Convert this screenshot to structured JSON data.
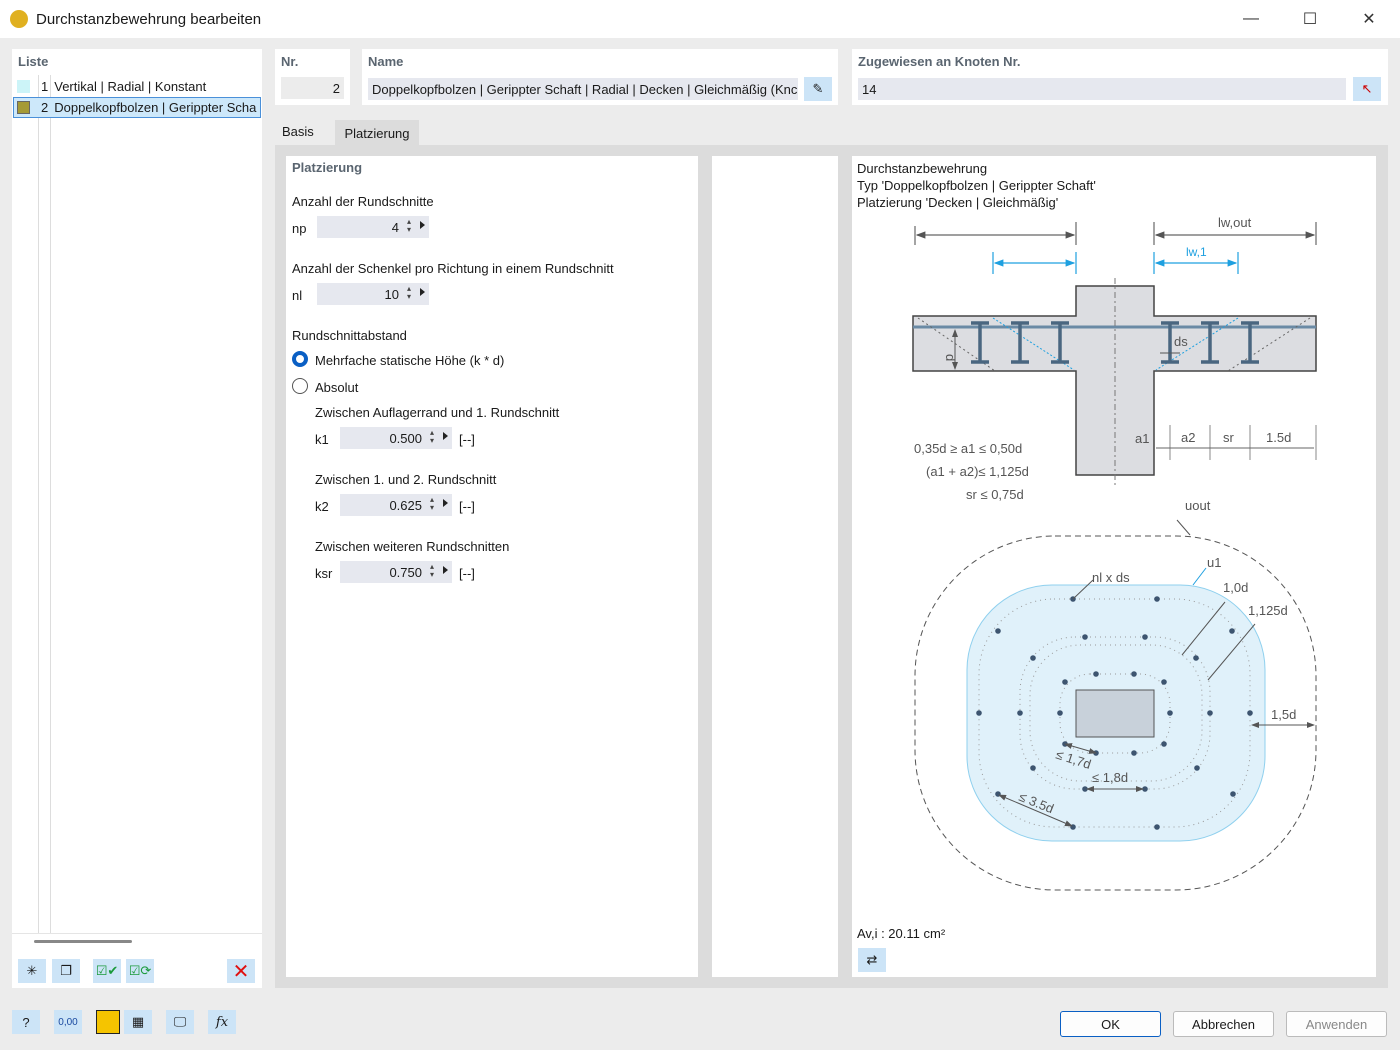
{
  "window": {
    "title": "Durchstanzbewehrung bearbeiten",
    "minimize": "—",
    "maximize": "☐",
    "close": "✕"
  },
  "list": {
    "header": "Liste",
    "items": [
      {
        "no": "1",
        "label": "Vertikal | Radial | Konstant",
        "color": "#ccf4f8"
      },
      {
        "no": "2",
        "label": "Doppelkopfbolzen | Gerippter Scha",
        "color": "#a59a36"
      }
    ]
  },
  "nr": {
    "header": "Nr.",
    "value": "2"
  },
  "name": {
    "header": "Name",
    "value": "Doppelkopfbolzen | Gerippter Schaft | Radial | Decken | Gleichmäßig (Knc"
  },
  "assigned": {
    "header": "Zugewiesen an Knoten Nr.",
    "value": "14"
  },
  "tabs": [
    {
      "label": "Basis"
    },
    {
      "label": "Platzierung",
      "active": true
    }
  ],
  "placement": {
    "title": "Platzierung",
    "np_label": "Anzahl der Rundschnitte",
    "np_sym": "np",
    "np_value": "4",
    "nl_label": "Anzahl der Schenkel pro Richtung in einem Rundschnitt",
    "nl_sym": "nl",
    "nl_value": "10",
    "spacing_label": "Rundschnittabstand",
    "option1": "Mehrfache statische Höhe (k * d)",
    "option2": "Absolut",
    "selected": "option1",
    "k1_label": "Zwischen Auflagerrand und 1. Rundschnitt",
    "k1_sym": "k1",
    "k1_value": "0.500",
    "k2_label": "Zwischen 1. und 2. Rundschnitt",
    "k2_sym": "k2",
    "k2_value": "0.625",
    "ksr_label": "Zwischen weiteren Rundschnitten",
    "ksr_sym": "ksr",
    "ksr_value": "0.750",
    "unit": "[--]"
  },
  "diagram": {
    "line1": "Durchstanzbewehrung",
    "line2": "Typ 'Doppelkopfbolzen | Gerippter Schaft'",
    "line3": "Platzierung 'Decken | Gleichmäßig'",
    "lwout": "lw,out",
    "lw1": "lw,1",
    "d": "d",
    "ds": "ds",
    "a1": "a1",
    "a2": "a2",
    "sr": "sr",
    "d15": "1.5d",
    "f1": "0,35d ≥ a1 ≤ 0,50d",
    "f2": "(a1 + a2)≤ 1,125d",
    "f3": "sr ≤ 0,75d",
    "uout": "uout",
    "u1": "u1",
    "nlds": "nl x ds",
    "d10": "1,0d",
    "d1125": "1,125d",
    "d15b": "1,5d",
    "m17": "≤ 1,7d",
    "m18": "≤ 1,8d",
    "m35": "≤ 3.5d",
    "area": "Av,i : 20.11 cm²"
  },
  "footer": {
    "ok": "OK",
    "cancel": "Abbrechen",
    "apply": "Anwenden",
    "units_icon_text": "0,00"
  }
}
